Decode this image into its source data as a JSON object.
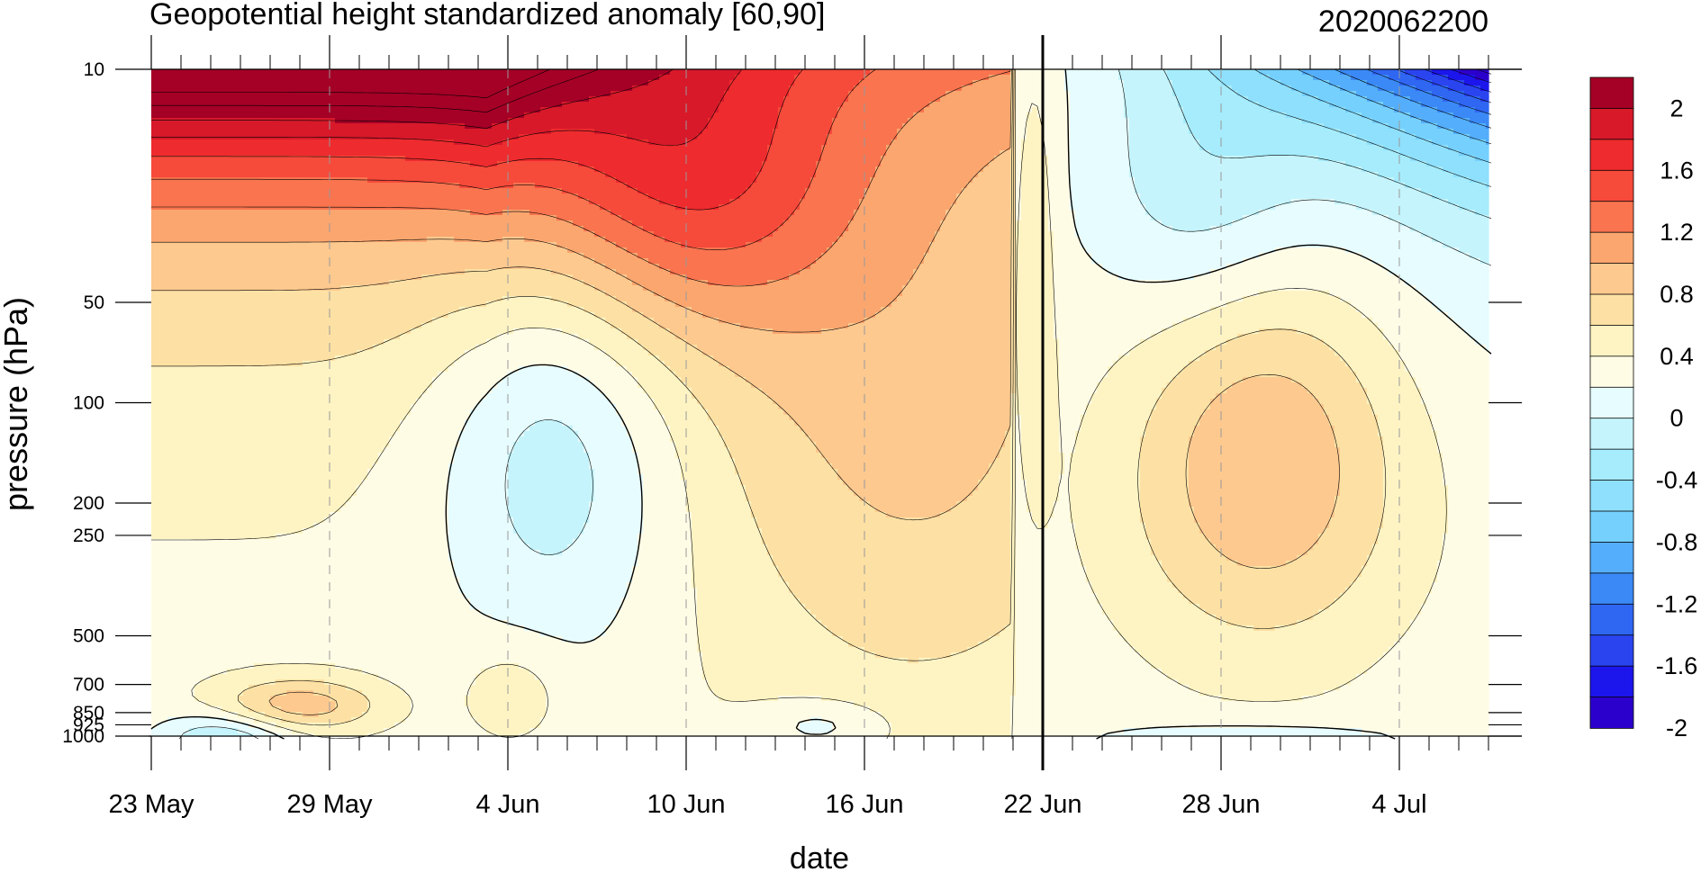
{
  "chart_data": {
    "type": "heatmap",
    "title": "Geopotential height standardized anomaly [60,90]",
    "date_label": "2020062200",
    "xlabel": "date",
    "ylabel": "pressure (hPa)",
    "x_ticks": [
      "23 May",
      "29 May",
      "4 Jun",
      "10 Jun",
      "16 Jun",
      "22 Jun",
      "28 Jun",
      "4 Jul"
    ],
    "x_tick_day_offsets": [
      0,
      6,
      12,
      18,
      24,
      30,
      36,
      42
    ],
    "x_range_days": [
      0,
      45
    ],
    "current_date_offset": 30,
    "y_scale": "log",
    "y_ticks": [
      "10",
      "50",
      "100",
      "200",
      "250",
      "500",
      "700",
      "850",
      "925",
      "1000"
    ],
    "y_tick_values": [
      10,
      50,
      100,
      200,
      250,
      500,
      700,
      850,
      925,
      1000
    ],
    "y_range": [
      10,
      1000
    ],
    "levels": [
      -2.2,
      -2,
      -1.8,
      -1.6,
      -1.4,
      -1.2,
      -1,
      -0.8,
      -0.6,
      -0.4,
      -0.2,
      0,
      0.2,
      0.4,
      0.6,
      0.8,
      1,
      1.2,
      1.4,
      1.6,
      1.8,
      2,
      2.2
    ],
    "colorbar_labels": [
      "2",
      "1.6",
      "1.2",
      "0.8",
      "0.4",
      "0",
      "-0.4",
      "-0.8",
      "-1.2",
      "-1.6",
      "-2"
    ],
    "colorbar_colors": [
      "#a50026",
      "#d7192a",
      "#ee2b2e",
      "#f64a3b",
      "#f9744f",
      "#fba66f",
      "#fdc98f",
      "#fde1a4",
      "#fef4c3",
      "#fffce6",
      "#e6fcfe",
      "#c5f4fc",
      "#a6ecfc",
      "#8fe0fc",
      "#75d0fd",
      "#54aefb",
      "#3b89f6",
      "#2f66f2",
      "#2a44f0",
      "#1c16ec",
      "#2c00cc"
    ]
  }
}
